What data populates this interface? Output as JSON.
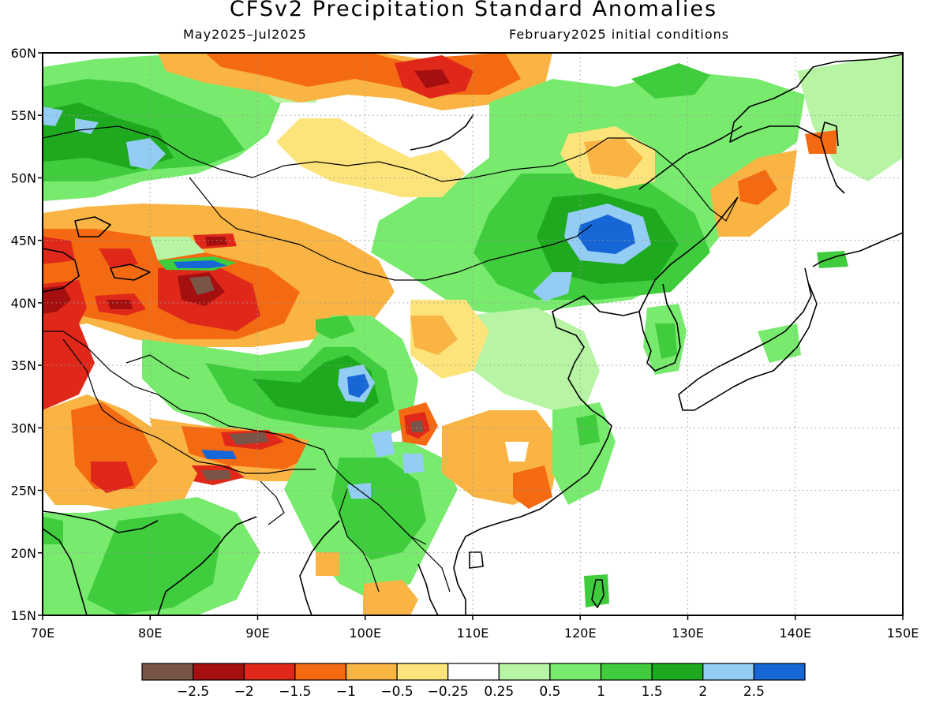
{
  "title": "CFSv2 Precipitation Standard Anomalies",
  "subtitle_left": "May2025–Jul2025",
  "subtitle_right": "February2025 initial conditions",
  "map": {
    "lon_range": [
      70,
      150
    ],
    "lat_range": [
      15,
      60
    ],
    "x_ticks": [
      "70E",
      "80E",
      "90E",
      "100E",
      "110E",
      "120E",
      "130E",
      "140E",
      "150E"
    ],
    "y_ticks": [
      "15N",
      "20N",
      "25N",
      "30N",
      "35N",
      "40N",
      "45N",
      "50N",
      "55N",
      "60N"
    ],
    "grid": "dotted"
  },
  "colorbar": {
    "colors": [
      "#795548",
      "#a50f0f",
      "#e0281a",
      "#f46a12",
      "#f9b443",
      "#fde47a",
      "#ffffff",
      "#b7f5a5",
      "#78eb6e",
      "#3fcc3d",
      "#1ea91f",
      "#93cdf4",
      "#1666d6"
    ],
    "labels": [
      "−2.5",
      "−2",
      "−1.5",
      "−1",
      "−0.5",
      "−0.25",
      "0.25",
      "0.5",
      "1",
      "1.5",
      "2",
      "2.5"
    ]
  }
}
